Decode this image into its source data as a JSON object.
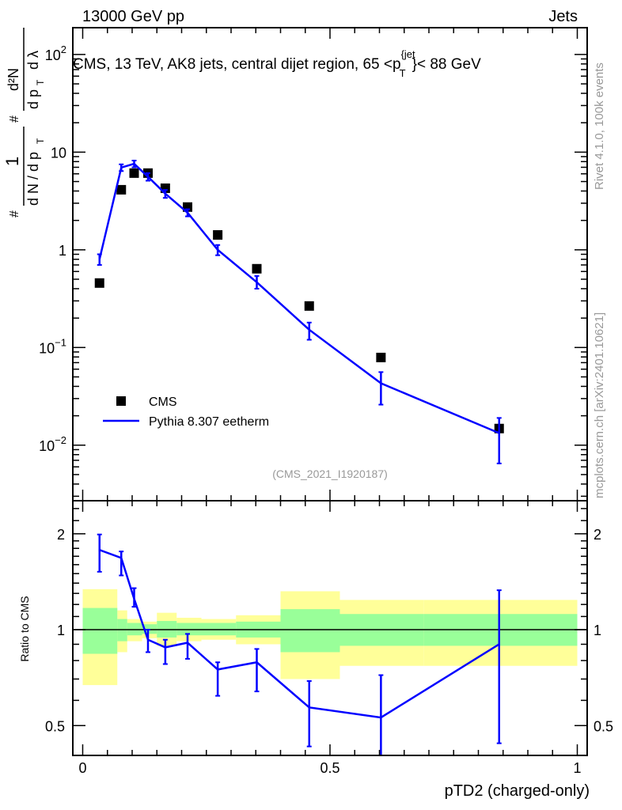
{
  "header": {
    "left": "13000 GeV pp",
    "right": "Jets"
  },
  "side_texts": {
    "rivet": "Rivet 4.1.0,  100k events",
    "mcplots": "mcplots.cern.ch [arXiv:2401.10621]"
  },
  "chart_data": {
    "type": "line",
    "title": "CMS, 13 TeV, AK8 jets, central dijet region, 65 <p_T^{jet}< 88 GeV",
    "title_parts": {
      "main": "CMS, 13 TeV, AK8 jets, central dijet region, 65 <p",
      "sup": "{jet",
      "sub": "T",
      "tail": "}< 88 GeV"
    },
    "analysis_label": "(CMS_2021_I1920187)",
    "xlabel": "pTD2 (charged-only)",
    "ylabel": "1/dN/dp_T # d²N/dp_T dλ",
    "ylabel_parts": {
      "num1": "1",
      "den1": "d N / d p",
      "sub": "T",
      "hash1": "#",
      "hash2": "#",
      "num2": "d²N",
      "den2": "d p",
      "den2b": "d λ"
    },
    "ratio_ylabel": "Ratio to CMS",
    "xlim": [
      -0.02,
      1.02
    ],
    "ylim": [
      0.0027,
      188
    ],
    "yscale": "log",
    "ratio_ylim": [
      0.403,
      2.54
    ],
    "ratio_yscale": "log",
    "x_ticks": [
      {
        "v": 0,
        "label": "0"
      },
      {
        "v": 0.5,
        "label": "0.5"
      },
      {
        "v": 1,
        "label": "1"
      }
    ],
    "y_ticks": [
      {
        "v": 100,
        "base": "10",
        "exp": "2"
      },
      {
        "v": 10,
        "base": "10",
        "exp": ""
      },
      {
        "v": 1,
        "base": "1",
        "exp": ""
      },
      {
        "v": 0.1,
        "base": "10",
        "exp": "−1"
      },
      {
        "v": 0.01,
        "base": "10",
        "exp": "−2"
      }
    ],
    "ratio_ticks": [
      {
        "v": 2,
        "label": "2"
      },
      {
        "v": 1,
        "label": "1"
      },
      {
        "v": 0.5,
        "label": "0.5"
      }
    ],
    "legend": {
      "position": "lower-left",
      "entries": [
        "CMS",
        "Pythia 8.307 eetherm"
      ]
    },
    "x": [
      0.034,
      0.078,
      0.104,
      0.132,
      0.167,
      0.212,
      0.273,
      0.352,
      0.458,
      0.603,
      0.842
    ],
    "bin_edges": [
      0,
      0.07,
      0.09,
      0.12,
      0.15,
      0.19,
      0.24,
      0.31,
      0.4,
      0.52,
      0.69,
      1.0
    ],
    "series": [
      {
        "name": "CMS",
        "color": "#000000",
        "values": [
          0.457,
          4.12,
          6.1,
          6.1,
          4.27,
          2.74,
          1.42,
          0.64,
          0.266,
          0.079,
          0.0148
        ]
      },
      {
        "name": "Pythia 8.307 eetherm",
        "color": "#0000ff",
        "values": [
          0.8,
          6.95,
          7.6,
          5.6,
          3.76,
          2.4,
          1.0,
          0.466,
          0.152,
          0.043,
          0.0133
        ],
        "err_low": [
          0.7,
          6.4,
          7.0,
          5.1,
          3.4,
          2.2,
          0.88,
          0.4,
          0.12,
          0.026,
          0.0065
        ],
        "err_high": [
          0.9,
          7.5,
          8.2,
          6.1,
          4.1,
          2.6,
          1.12,
          0.54,
          0.18,
          0.056,
          0.019
        ],
        "ratio": [
          1.78,
          1.68,
          1.25,
          0.93,
          0.88,
          0.91,
          0.75,
          0.79,
          0.57,
          0.53,
          0.9
        ],
        "ratio_low": [
          1.52,
          1.48,
          1.18,
          0.85,
          0.78,
          0.81,
          0.62,
          0.64,
          0.43,
          0.35,
          0.44
        ],
        "ratio_high": [
          1.99,
          1.76,
          1.35,
          1.0,
          0.93,
          0.97,
          0.79,
          0.87,
          0.69,
          0.72,
          1.33
        ]
      }
    ],
    "cms_band_1sigma": {
      "color": "#99ff99",
      "low": [
        0.84,
        0.92,
        0.96,
        0.97,
        0.945,
        0.96,
        0.96,
        0.945,
        0.85,
        0.89,
        0.89
      ],
      "high": [
        1.17,
        1.08,
        1.05,
        1.04,
        1.065,
        1.05,
        1.05,
        1.06,
        1.16,
        1.12,
        1.12
      ]
    },
    "cms_band_2sigma": {
      "color": "#ffff99",
      "low": [
        0.67,
        0.85,
        0.92,
        0.94,
        0.89,
        0.92,
        0.93,
        0.9,
        0.7,
        0.77,
        0.77
      ],
      "high": [
        1.34,
        1.15,
        1.08,
        1.06,
        1.13,
        1.09,
        1.08,
        1.11,
        1.32,
        1.24,
        1.24
      ]
    }
  }
}
